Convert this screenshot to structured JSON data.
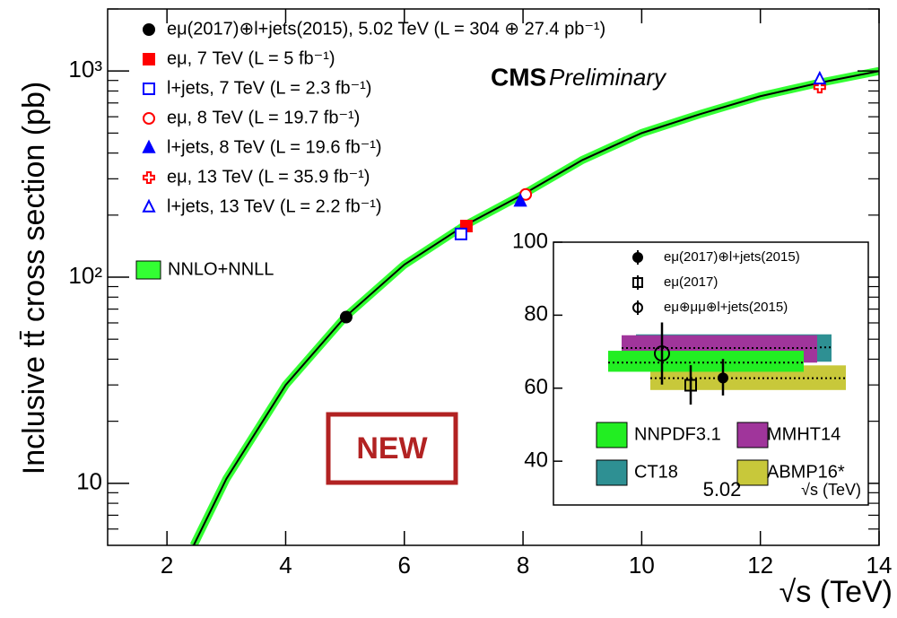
{
  "chart_data": [
    {
      "type": "line",
      "log_y": true,
      "y_label": "Inclusive tt̄ cross section (pb)",
      "x_label": "√s (TeV)",
      "annotations": [
        "CMS",
        "Preliminary",
        "NEW"
      ],
      "xlim": [
        1,
        14
      ],
      "xticks": [
        2,
        4,
        6,
        8,
        10,
        12,
        14
      ],
      "ylim": [
        5,
        2000
      ],
      "yticks": [
        10,
        {
          "value": 100,
          "label": "10²"
        },
        {
          "value": 1000,
          "label": "10³"
        }
      ],
      "minor_yticks": [
        6,
        7,
        8,
        9,
        20,
        30,
        40,
        50,
        60,
        70,
        80,
        90,
        200,
        300,
        400,
        500,
        600,
        700,
        800,
        900,
        2000
      ],
      "series": [
        {
          "name": "eμ(2017)⊕l+jets(2015), 5.02 TeV (L = 304 ⊕ 27.4 pb⁻¹)",
          "color": "#000000",
          "marker": "circle",
          "open": false,
          "x": [
            5.02
          ],
          "values": [
            64
          ]
        },
        {
          "name": "eμ, 7 TeV (L = 5 fb⁻¹)",
          "color": "#ff0000",
          "marker": "square",
          "open": false,
          "x": [
            7
          ],
          "values": [
            177
          ]
        },
        {
          "name": "l+jets, 7 TeV (L = 2.3 fb⁻¹)",
          "color": "#0000ff",
          "marker": "square",
          "open": true,
          "x": [
            7
          ],
          "values": [
            162
          ]
        },
        {
          "name": "eμ, 8 TeV (L = 19.7 fb⁻¹)",
          "color": "#ff0000",
          "marker": "circle",
          "open": true,
          "x": [
            8
          ],
          "values": [
            252
          ]
        },
        {
          "name": "l+jets, 8 TeV (L = 19.6 fb⁻¹)",
          "color": "#0000ff",
          "marker": "triangle",
          "open": false,
          "x": [
            8
          ],
          "values": [
            233
          ]
        },
        {
          "name": "eμ, 13 TeV (L = 35.9 fb⁻¹)",
          "color": "#ff0000",
          "marker": "cross",
          "open": true,
          "x": [
            13
          ],
          "values": [
            835
          ]
        },
        {
          "name": "l+jets, 13 TeV (L = 2.2 fb⁻¹)",
          "color": "#0000ff",
          "marker": "triangle",
          "open": true,
          "x": [
            13
          ],
          "values": [
            913
          ]
        }
      ],
      "theory": {
        "name": "NNLO+NNLL",
        "color": "#33ff33",
        "x": [
          2.45,
          3,
          4,
          5,
          6,
          7,
          8,
          9,
          10,
          11,
          12,
          13,
          14
        ],
        "values": [
          5,
          10.5,
          30,
          64,
          115,
          177,
          252,
          370,
          500,
          620,
          755,
          877,
          1000
        ]
      }
    },
    {
      "type": "inset",
      "x_label": "√s (TeV)",
      "categories": [
        "5.02"
      ],
      "ylim": [
        28,
        100
      ],
      "yticks": [
        40,
        60,
        80,
        100
      ],
      "series": [
        {
          "name": "eμ(2017)⊕l+jets(2015)",
          "marker": "circle",
          "open": false,
          "values": [
            62.8
          ],
          "low": [
            58
          ],
          "high": [
            68
          ]
        },
        {
          "name": "eμ(2017)",
          "marker": "square",
          "open": true,
          "values": [
            60.8
          ],
          "low": [
            55.5
          ],
          "high": [
            66.3
          ]
        },
        {
          "name": "eμ⊕μμ⊕l+jets(2015)",
          "marker": "circle",
          "open": true,
          "values": [
            69.5
          ],
          "low": [
            61
          ],
          "high": [
            78
          ]
        }
      ],
      "bands": [
        {
          "name": "NNPDF3.1",
          "color": "#22ee22",
          "value": 67,
          "low": 64.5,
          "high": 70.25
        },
        {
          "name": "MMHT14",
          "color": "#a0359b",
          "value": 71,
          "low": 67,
          "high": 74.5
        },
        {
          "name": "CT18",
          "color": "#2e9093",
          "value": 71.2,
          "low": 67.25,
          "high": 74.75
        },
        {
          "name": "ABMP16*",
          "color": "#c8c83a",
          "value": 62.75,
          "low": 59.5,
          "high": 66.25
        }
      ]
    }
  ]
}
